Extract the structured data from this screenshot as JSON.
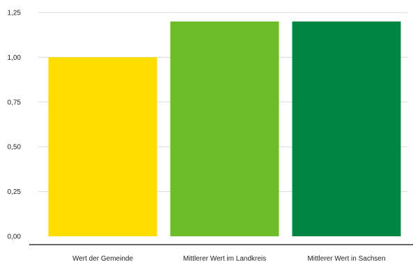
{
  "chart_data": {
    "type": "bar",
    "categories": [
      "Wert der Gemeinde",
      "Mittlerer Wert im Landkreis",
      "Mittlerer Wert in Sachsen"
    ],
    "values": [
      1.0,
      1.2,
      1.2
    ],
    "colors": [
      "#ffdd00",
      "#6dbd2a",
      "#008542"
    ],
    "ylim": [
      0,
      1.25
    ],
    "yticks": [
      0,
      0.25,
      0.5,
      0.75,
      1.0,
      1.25
    ],
    "ytick_labels": [
      "0,00",
      "0,25",
      "0,50",
      "0,75",
      "1,00",
      "1,25"
    ],
    "grid": true,
    "legend": "none"
  }
}
